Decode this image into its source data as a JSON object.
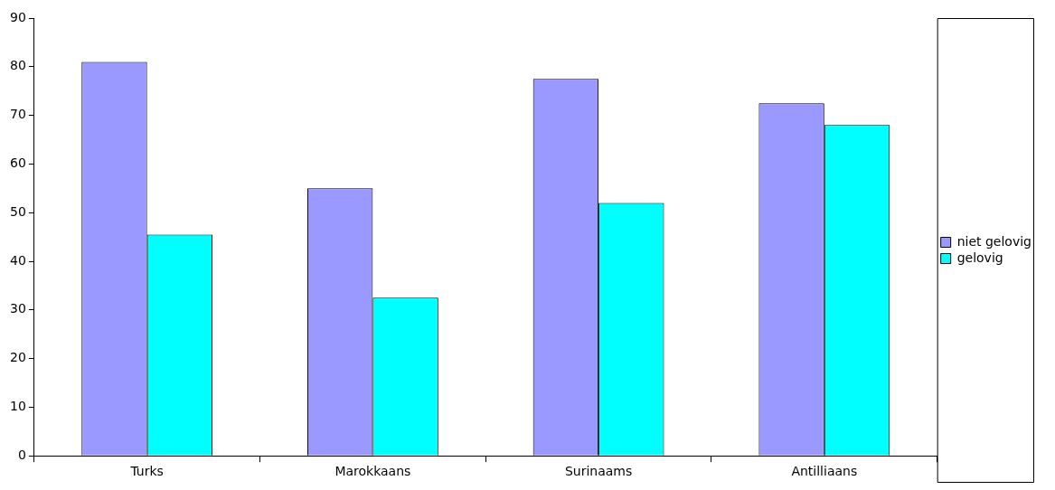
{
  "chart_data": {
    "type": "bar",
    "categories": [
      "Turks",
      "Marokkaans",
      "Surinaams",
      "Antilliaans"
    ],
    "series": [
      {
        "name": "niet gelovig",
        "color": "#9999ff",
        "values": [
          81,
          55,
          77.5,
          72.5
        ]
      },
      {
        "name": "gelovig",
        "color": "#00ffff",
        "values": [
          45.5,
          32.5,
          52,
          68
        ]
      }
    ],
    "ylim": [
      0,
      90
    ],
    "yticks": [
      0,
      10,
      20,
      30,
      40,
      50,
      60,
      70,
      80,
      90
    ],
    "legend": "right"
  }
}
